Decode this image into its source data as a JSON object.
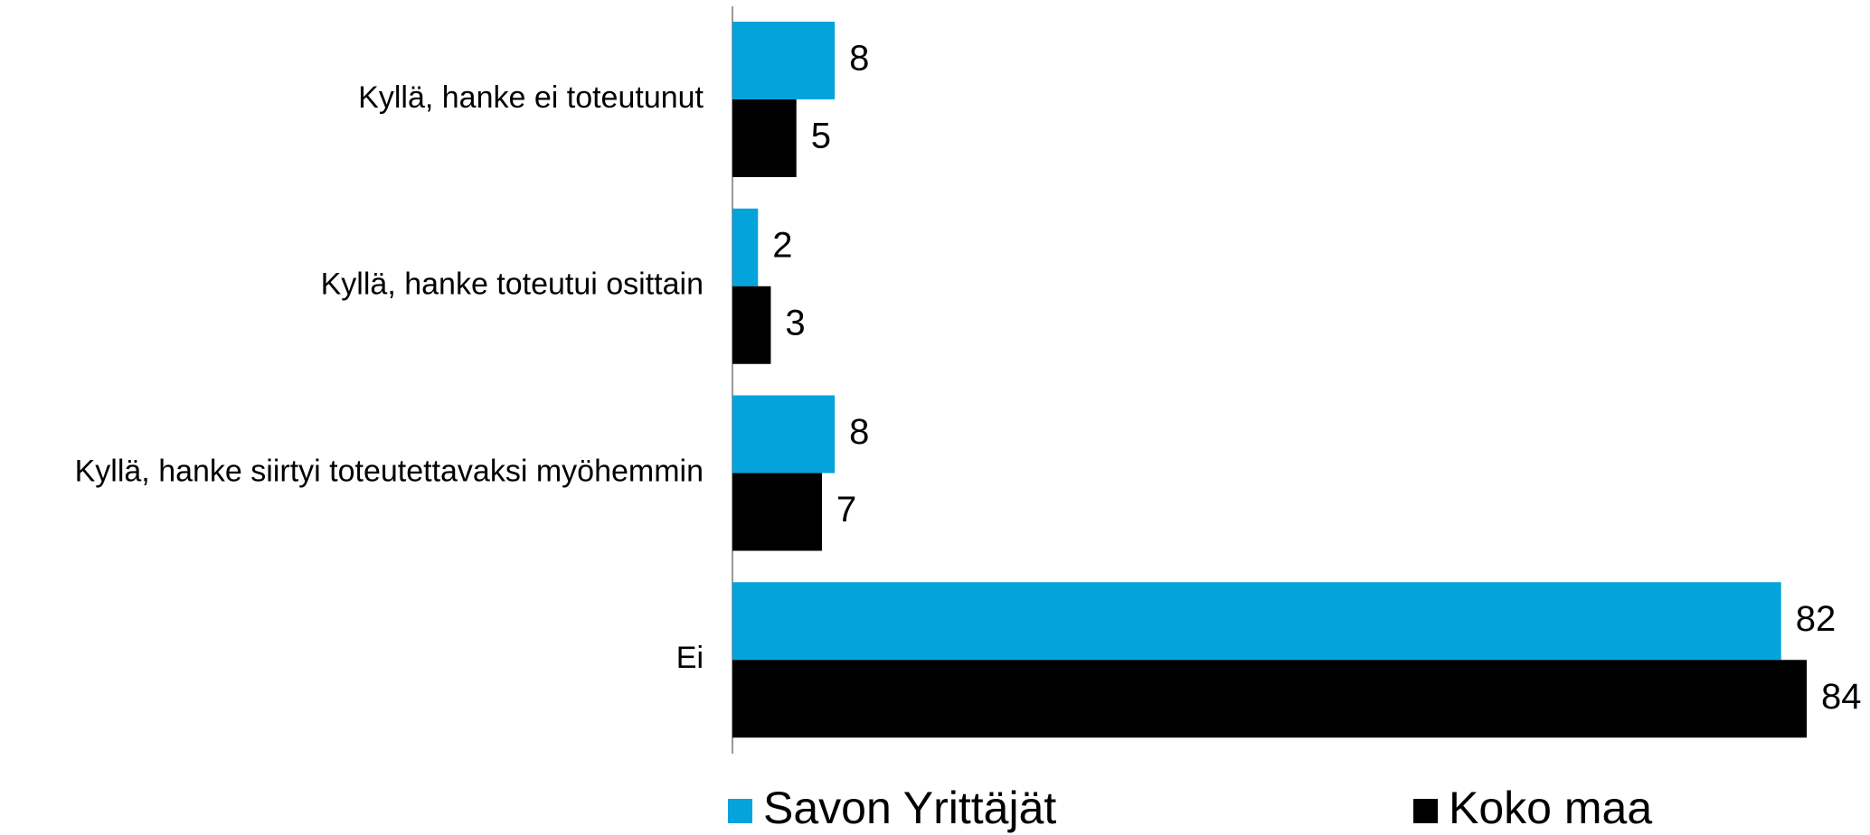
{
  "chart_data": {
    "type": "hbar",
    "categories": [
      "Kyllä, hanke ei toteutunut",
      "Kyllä, hanke toteutui osittain",
      "Kyllä, hanke siirtyi toteutettavaksi myöhemmin",
      "Ei"
    ],
    "series": [
      {
        "name": "Savon Yrittäjät",
        "color": "#05a3db",
        "values": [
          8,
          2,
          8,
          82
        ]
      },
      {
        "name": "Koko maa",
        "color": "#000000",
        "values": [
          5,
          3,
          7,
          84
        ]
      }
    ],
    "xlim": [
      0,
      84
    ]
  }
}
